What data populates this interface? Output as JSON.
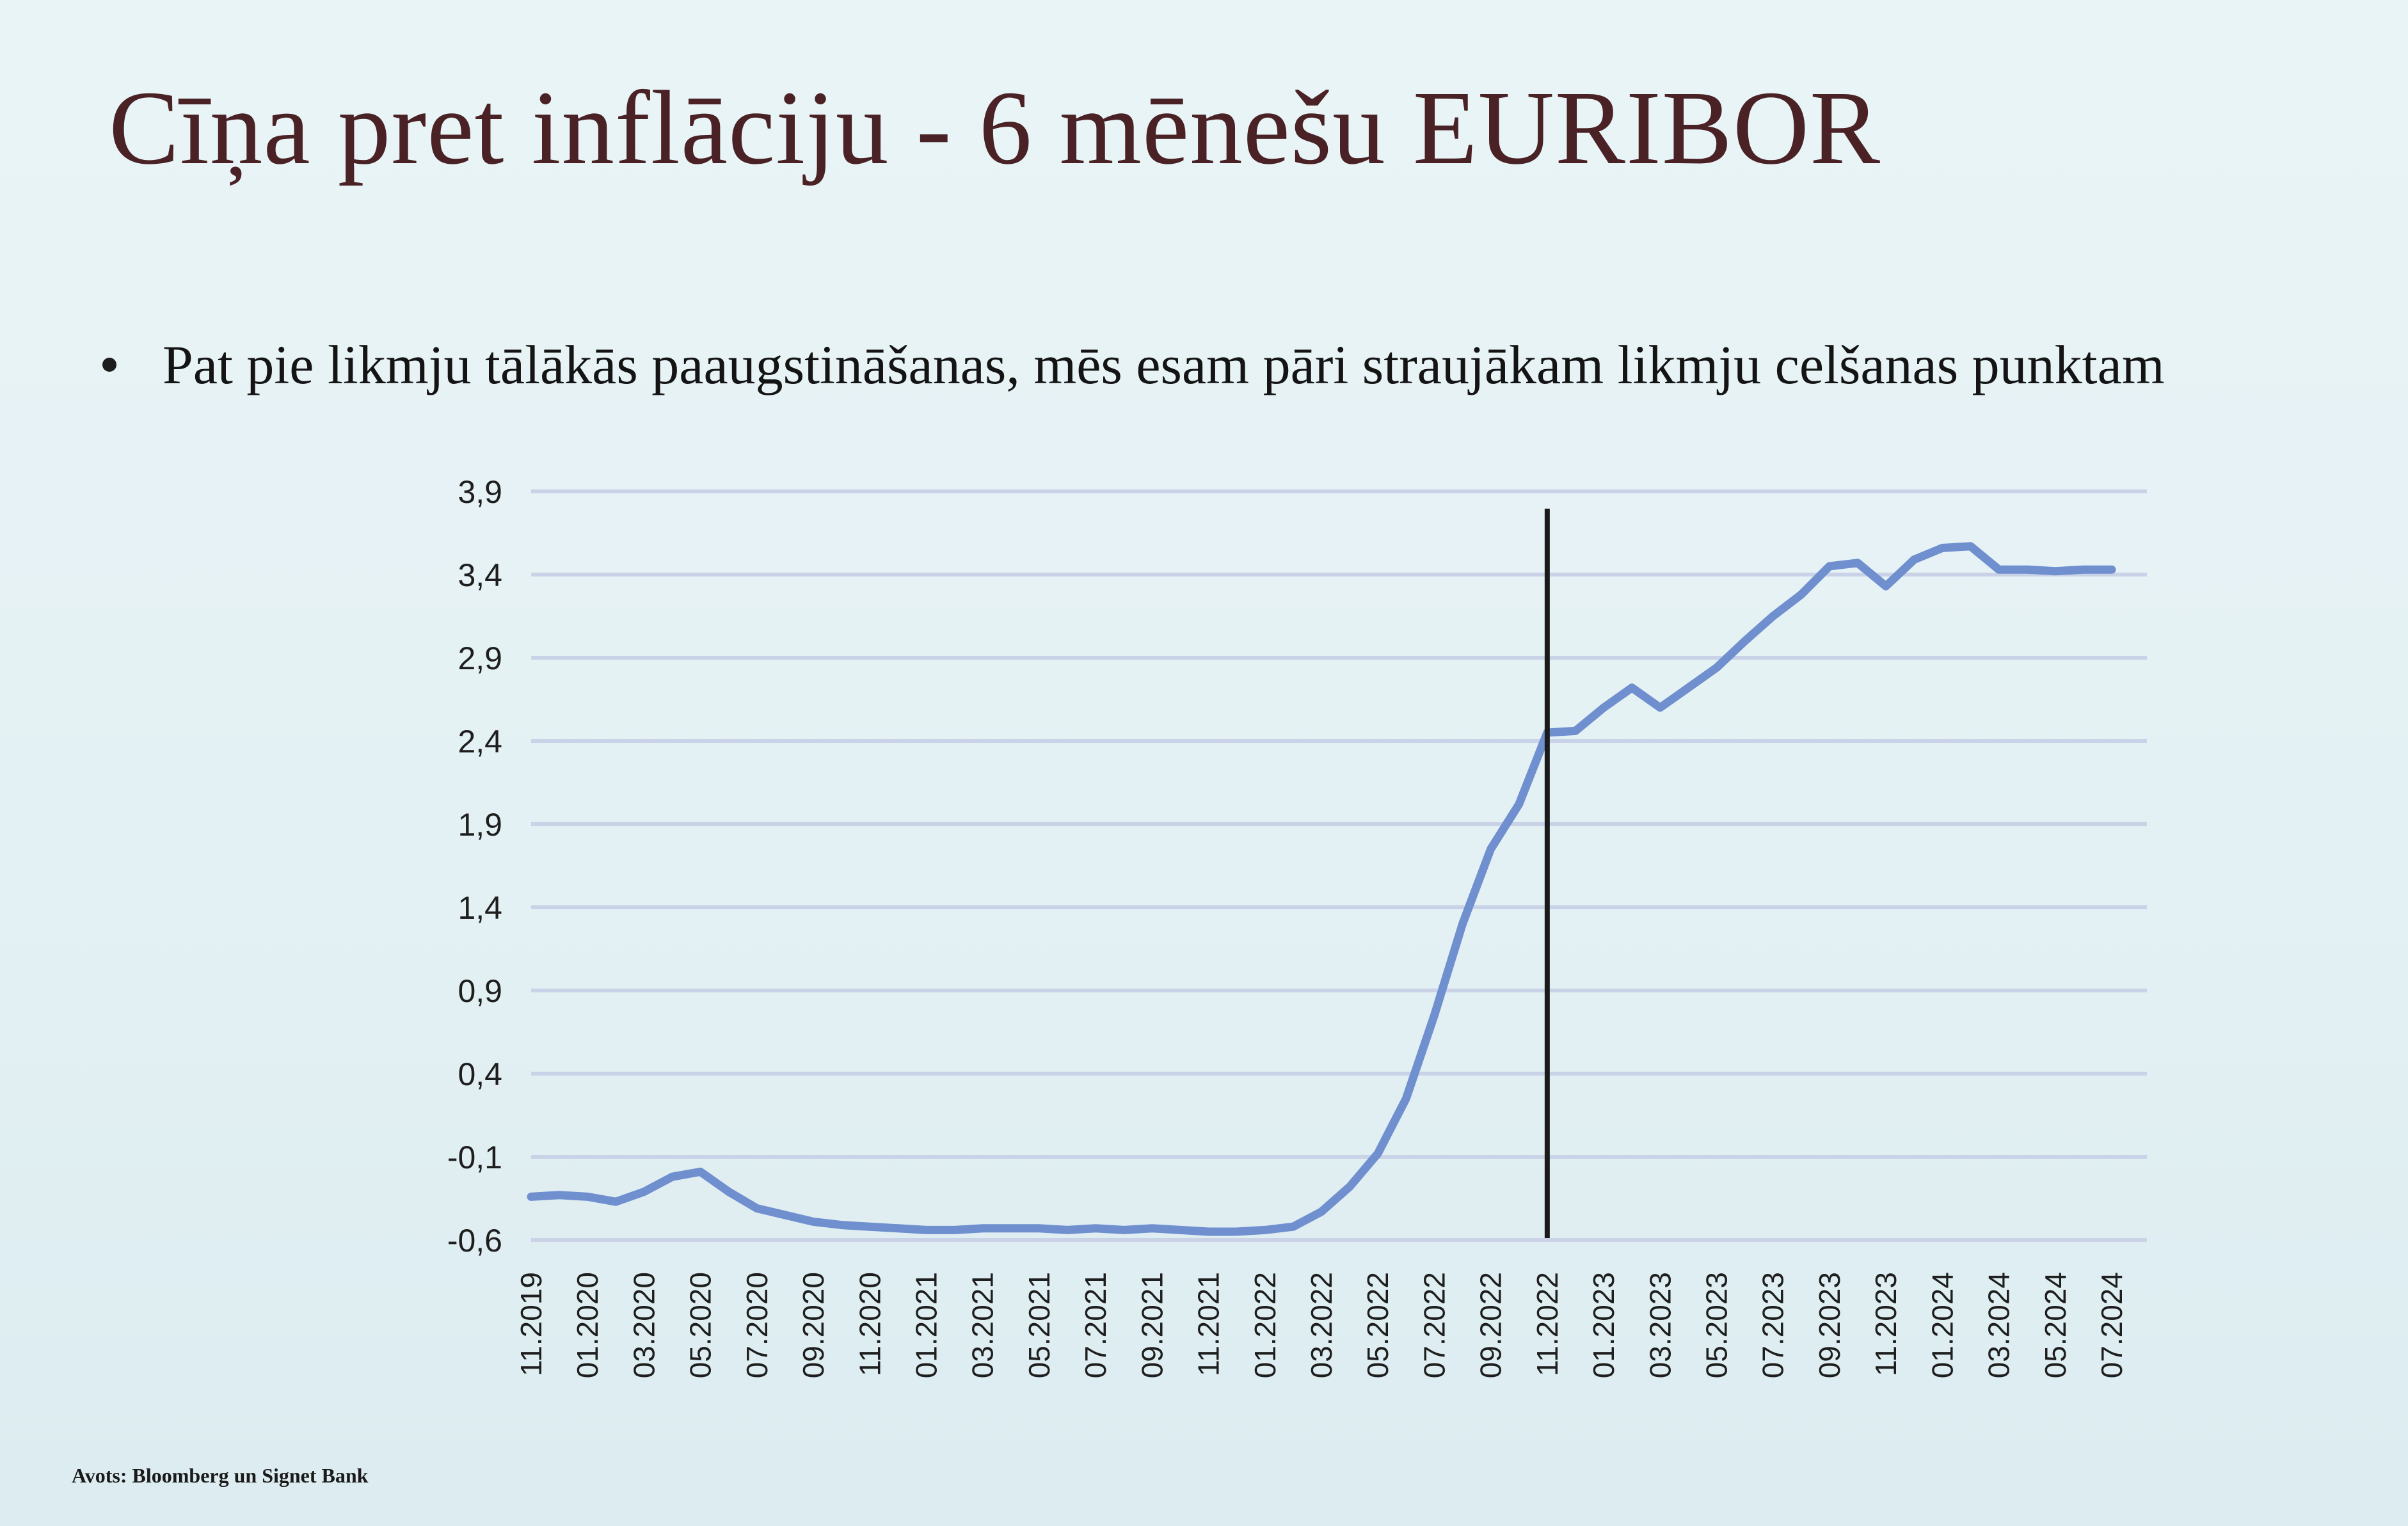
{
  "slide": {
    "title": "Cīņa pret inflāciju - 6 mēnešu EURIBOR",
    "bullet": "Pat pie likmju tālākās paaugstināšanas, mēs esam pāri straujākam likmju celšanas punktam",
    "source": "Avots: Bloomberg un Signet Bank"
  },
  "colors": {
    "title": "#4a2226",
    "line": "#6f8fcf",
    "grid": "#c9d2e6",
    "marker_line": "#1a1a1a"
  },
  "chart_data": {
    "type": "line",
    "title": "",
    "xlabel": "",
    "ylabel": "",
    "ylim": [
      -0.6,
      3.9
    ],
    "yticks": [
      "3,9",
      "3,4",
      "2,9",
      "2,4",
      "1,9",
      "1,4",
      "0,9",
      "0,4",
      "-0,1",
      "-0,6"
    ],
    "ytick_values": [
      3.9,
      3.4,
      2.9,
      2.4,
      1.9,
      1.4,
      0.9,
      0.4,
      -0.1,
      -0.6
    ],
    "x_tick_labels": [
      "11.2019",
      "01.2020",
      "03.2020",
      "05.2020",
      "07.2020",
      "09.2020",
      "11.2020",
      "01.2021",
      "03.2021",
      "05.2021",
      "07.2021",
      "09.2021",
      "11.2021",
      "01.2022",
      "03.2022",
      "05.2022",
      "07.2022",
      "09.2022",
      "11.2022",
      "01.2023",
      "03.2023",
      "05.2023",
      "07.2023",
      "09.2023",
      "11.2023",
      "01.2024",
      "03.2024",
      "05.2024",
      "07.2024"
    ],
    "grid": true,
    "vertical_marker": "11.2022",
    "series": [
      {
        "values": [
          -0.34,
          -0.33,
          -0.34,
          -0.37,
          -0.31,
          -0.22,
          -0.19,
          -0.31,
          -0.41,
          -0.45,
          -0.49,
          -0.51,
          -0.52,
          -0.53,
          -0.54,
          -0.54,
          -0.53,
          -0.53,
          -0.53,
          -0.54,
          -0.53,
          -0.54,
          -0.53,
          -0.54,
          -0.55,
          -0.55,
          -0.54,
          -0.52,
          -0.43,
          -0.28,
          -0.08,
          0.25,
          0.75,
          1.3,
          1.75,
          2.02,
          2.45,
          2.46,
          2.6,
          2.72,
          2.6,
          2.72,
          2.84,
          3.0,
          3.15,
          3.28,
          3.45,
          3.47,
          3.33,
          3.49,
          3.56,
          3.57,
          3.43,
          3.43,
          3.42,
          3.43,
          3.43
        ]
      }
    ]
  }
}
